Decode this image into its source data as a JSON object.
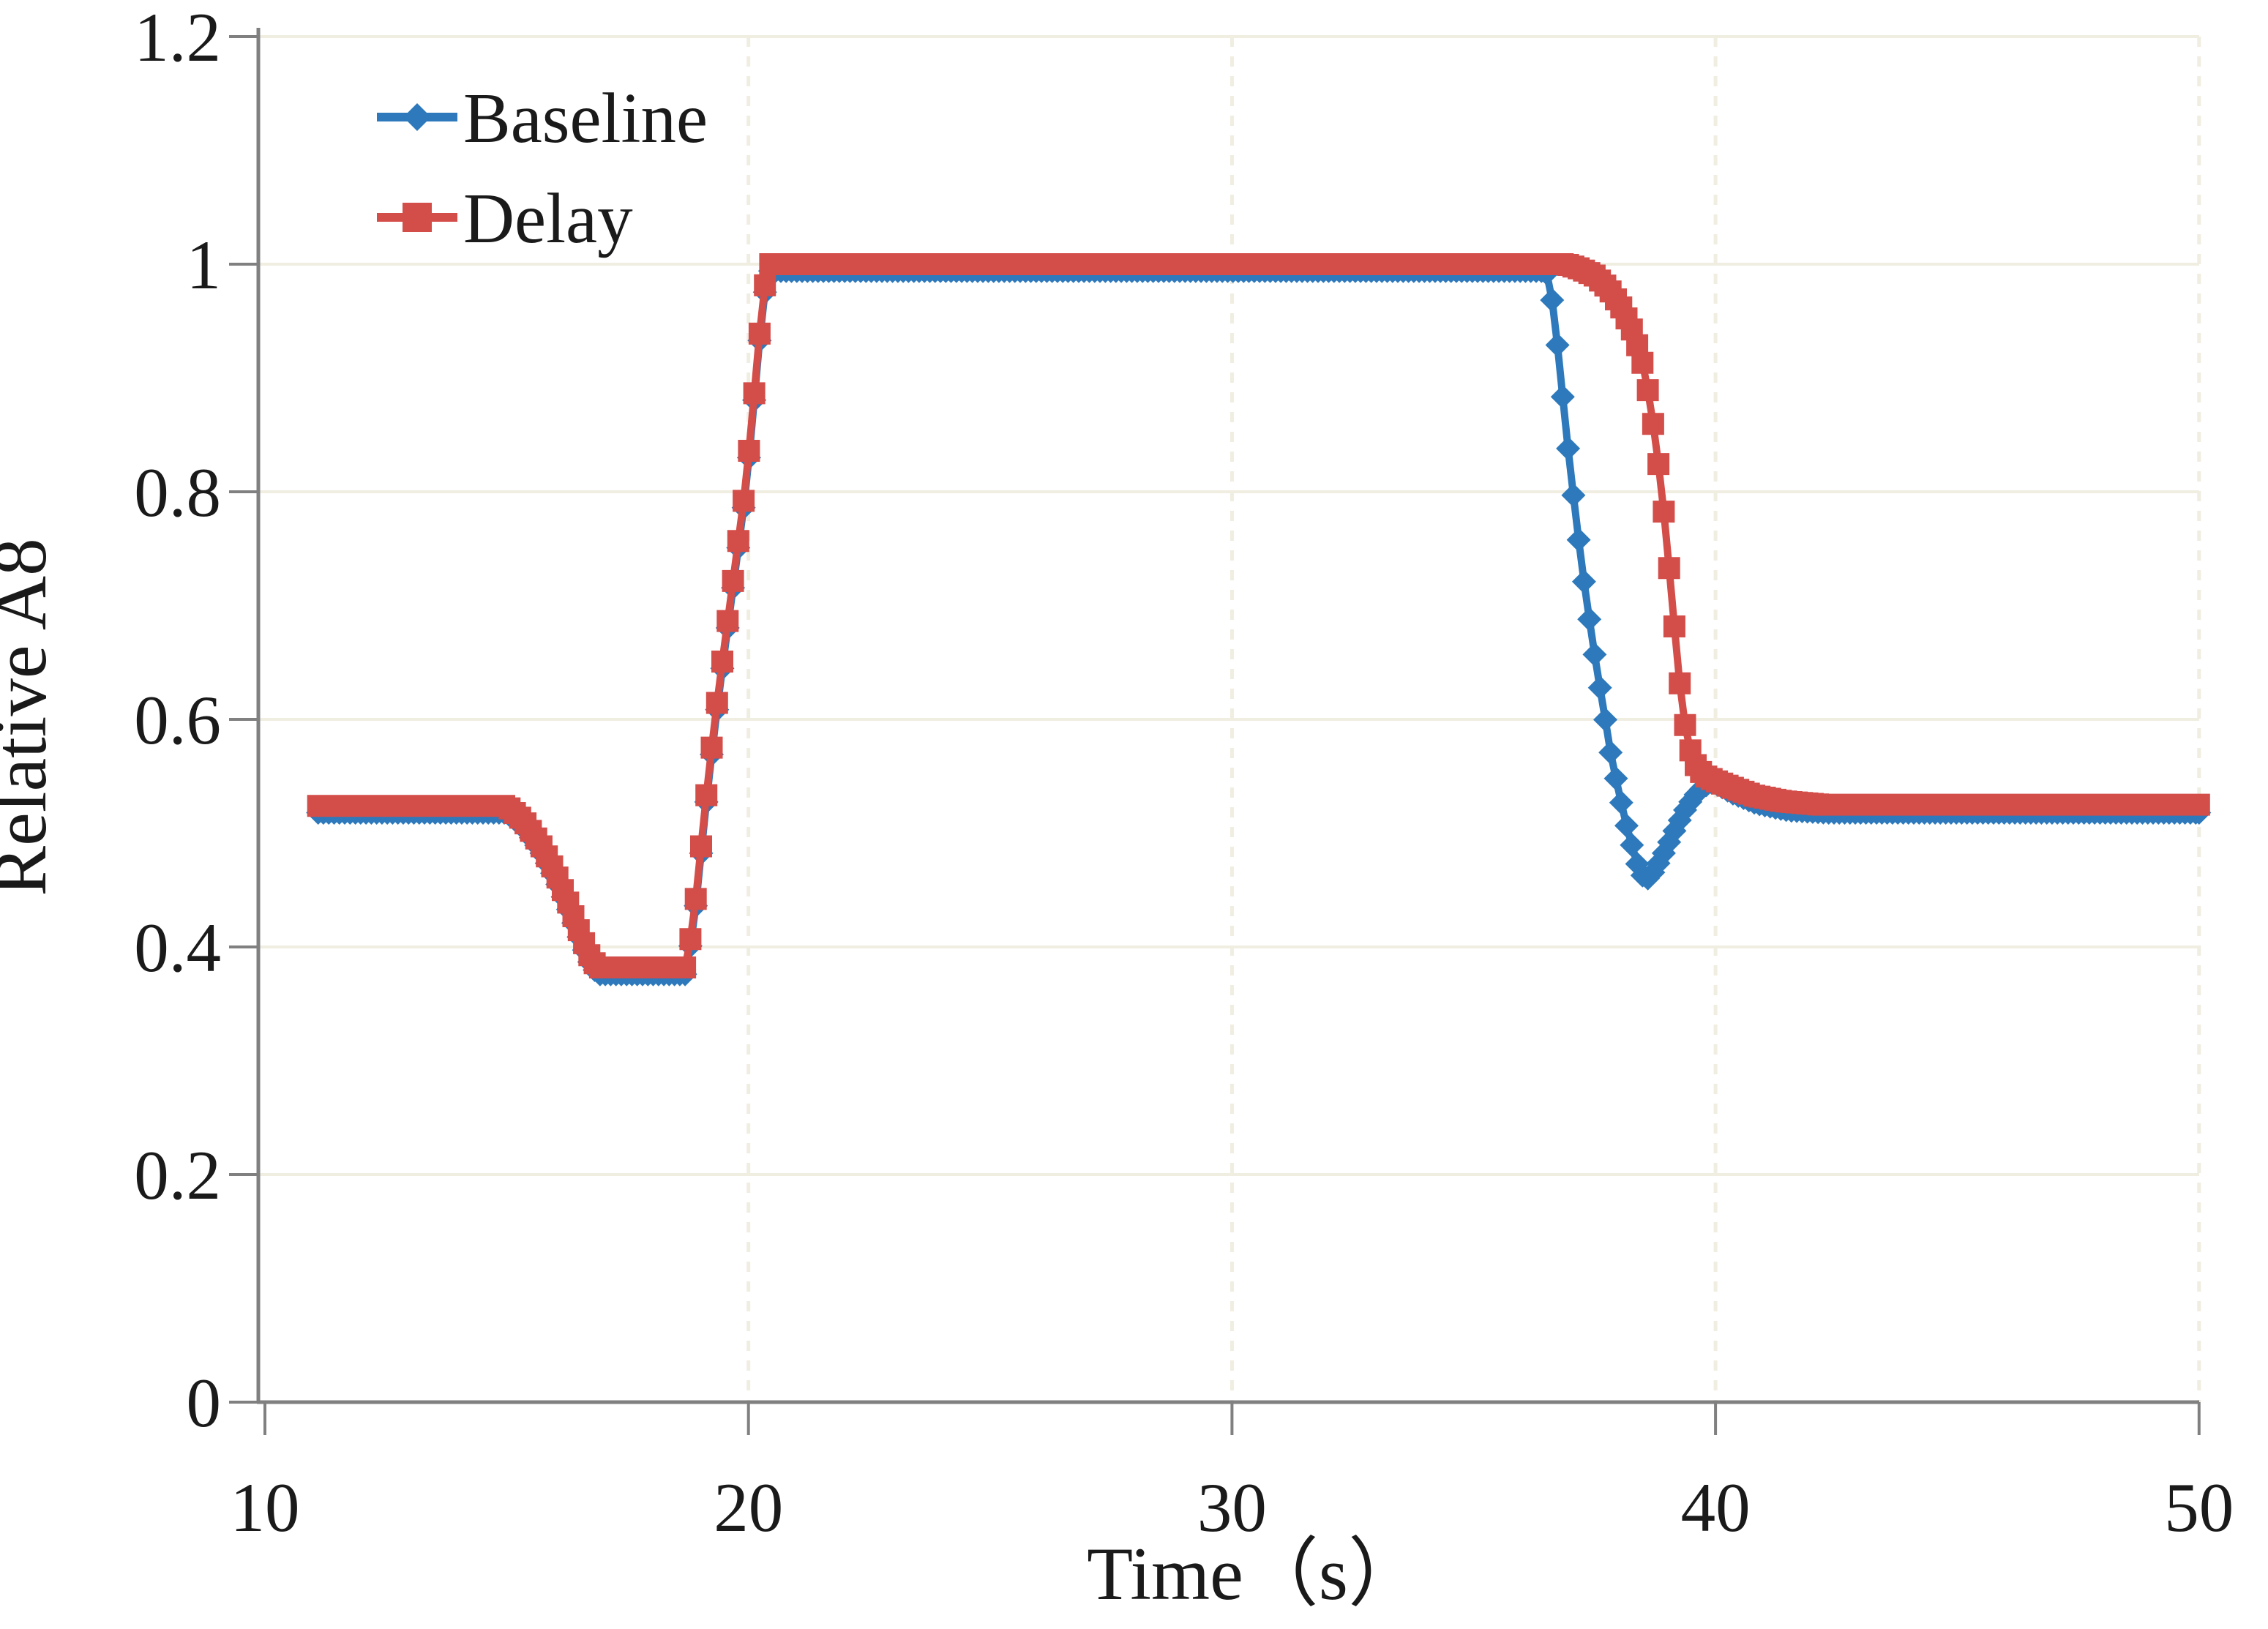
{
  "chart_data": {
    "type": "line",
    "title": "",
    "xlabel": "Time（s）",
    "ylabel": "Relative A8",
    "xlim": [
      9.85,
      50.9
    ],
    "ylim": [
      0,
      1.2
    ],
    "x_ticks": [
      10,
      20,
      30,
      40,
      50
    ],
    "x_tick_labels": [
      "10",
      "20",
      "30",
      "40",
      "50"
    ],
    "y_ticks": [
      0,
      0.2,
      0.4,
      0.6,
      0.8,
      1,
      1.2
    ],
    "y_tick_labels": [
      "0",
      "0.2",
      "0.4",
      "0.6",
      "0.8",
      "1",
      "1.2"
    ],
    "grid": {
      "horizontal": "solid",
      "vertical": "dashed",
      "shown": true
    },
    "legend": {
      "position": "top-left-inside"
    },
    "marker_step_s": 0.11,
    "series": [
      {
        "name": "Baseline",
        "color": "#2d79bb",
        "marker": "diamond",
        "keyframes": [
          [
            11.1,
            0.518
          ],
          [
            15.0,
            0.518
          ],
          [
            15.35,
            0.505
          ],
          [
            15.7,
            0.484
          ],
          [
            16.0,
            0.46
          ],
          [
            16.3,
            0.43
          ],
          [
            16.55,
            0.402
          ],
          [
            16.75,
            0.383
          ],
          [
            16.9,
            0.376
          ],
          [
            18.72,
            0.376
          ],
          [
            18.9,
            0.432
          ],
          [
            19.1,
            0.516
          ],
          [
            19.3,
            0.592
          ],
          [
            19.5,
            0.658
          ],
          [
            19.7,
            0.722
          ],
          [
            19.9,
            0.786
          ],
          [
            20.05,
            0.846
          ],
          [
            20.2,
            0.92
          ],
          [
            20.32,
            0.972
          ],
          [
            20.45,
            0.994
          ],
          [
            36.5,
            0.994
          ],
          [
            36.65,
            0.962
          ],
          [
            36.8,
            0.9
          ],
          [
            36.95,
            0.838
          ],
          [
            37.1,
            0.782
          ],
          [
            37.25,
            0.73
          ],
          [
            37.4,
            0.685
          ],
          [
            37.55,
            0.643
          ],
          [
            37.7,
            0.605
          ],
          [
            37.82,
            0.573
          ],
          [
            37.95,
            0.546
          ],
          [
            38.07,
            0.523
          ],
          [
            38.18,
            0.503
          ],
          [
            38.3,
            0.485
          ],
          [
            38.4,
            0.47
          ],
          [
            38.5,
            0.462
          ],
          [
            38.62,
            0.46
          ],
          [
            38.75,
            0.468
          ],
          [
            38.95,
            0.484
          ],
          [
            39.15,
            0.502
          ],
          [
            39.35,
            0.519
          ],
          [
            39.55,
            0.532
          ],
          [
            39.75,
            0.541
          ],
          [
            39.95,
            0.545
          ],
          [
            40.35,
            0.535
          ],
          [
            40.85,
            0.526
          ],
          [
            41.5,
            0.52
          ],
          [
            42.3,
            0.518
          ],
          [
            50.0,
            0.518
          ]
        ]
      },
      {
        "name": "Delay",
        "color": "#d34d49",
        "marker": "square",
        "keyframes": [
          [
            11.1,
            0.524
          ],
          [
            15.0,
            0.524
          ],
          [
            15.35,
            0.511
          ],
          [
            15.7,
            0.49
          ],
          [
            16.0,
            0.466
          ],
          [
            16.3,
            0.436
          ],
          [
            16.55,
            0.408
          ],
          [
            16.75,
            0.389
          ],
          [
            16.9,
            0.382
          ],
          [
            18.72,
            0.382
          ],
          [
            18.9,
            0.438
          ],
          [
            19.1,
            0.522
          ],
          [
            19.3,
            0.598
          ],
          [
            19.5,
            0.664
          ],
          [
            19.7,
            0.728
          ],
          [
            19.9,
            0.792
          ],
          [
            20.05,
            0.852
          ],
          [
            20.2,
            0.926
          ],
          [
            20.32,
            0.978
          ],
          [
            20.45,
            1.0
          ],
          [
            36.9,
            1.0
          ],
          [
            37.2,
            0.996
          ],
          [
            37.5,
            0.99
          ],
          [
            37.8,
            0.978
          ],
          [
            38.05,
            0.962
          ],
          [
            38.3,
            0.94
          ],
          [
            38.5,
            0.912
          ],
          [
            38.65,
            0.878
          ],
          [
            38.8,
            0.832
          ],
          [
            38.95,
            0.775
          ],
          [
            39.1,
            0.705
          ],
          [
            39.25,
            0.635
          ],
          [
            39.4,
            0.585
          ],
          [
            39.55,
            0.562
          ],
          [
            39.75,
            0.551
          ],
          [
            40.0,
            0.546
          ],
          [
            40.35,
            0.54
          ],
          [
            40.8,
            0.533
          ],
          [
            41.4,
            0.528
          ],
          [
            42.2,
            0.525
          ],
          [
            50.0,
            0.525
          ]
        ]
      }
    ]
  },
  "colors": {
    "background": "#ffffff",
    "grid": "#f0ede1",
    "axis": "#808080",
    "text": "#1a1a1a",
    "baseline_blue": "#2d79bb",
    "delay_red": "#d34d49"
  }
}
